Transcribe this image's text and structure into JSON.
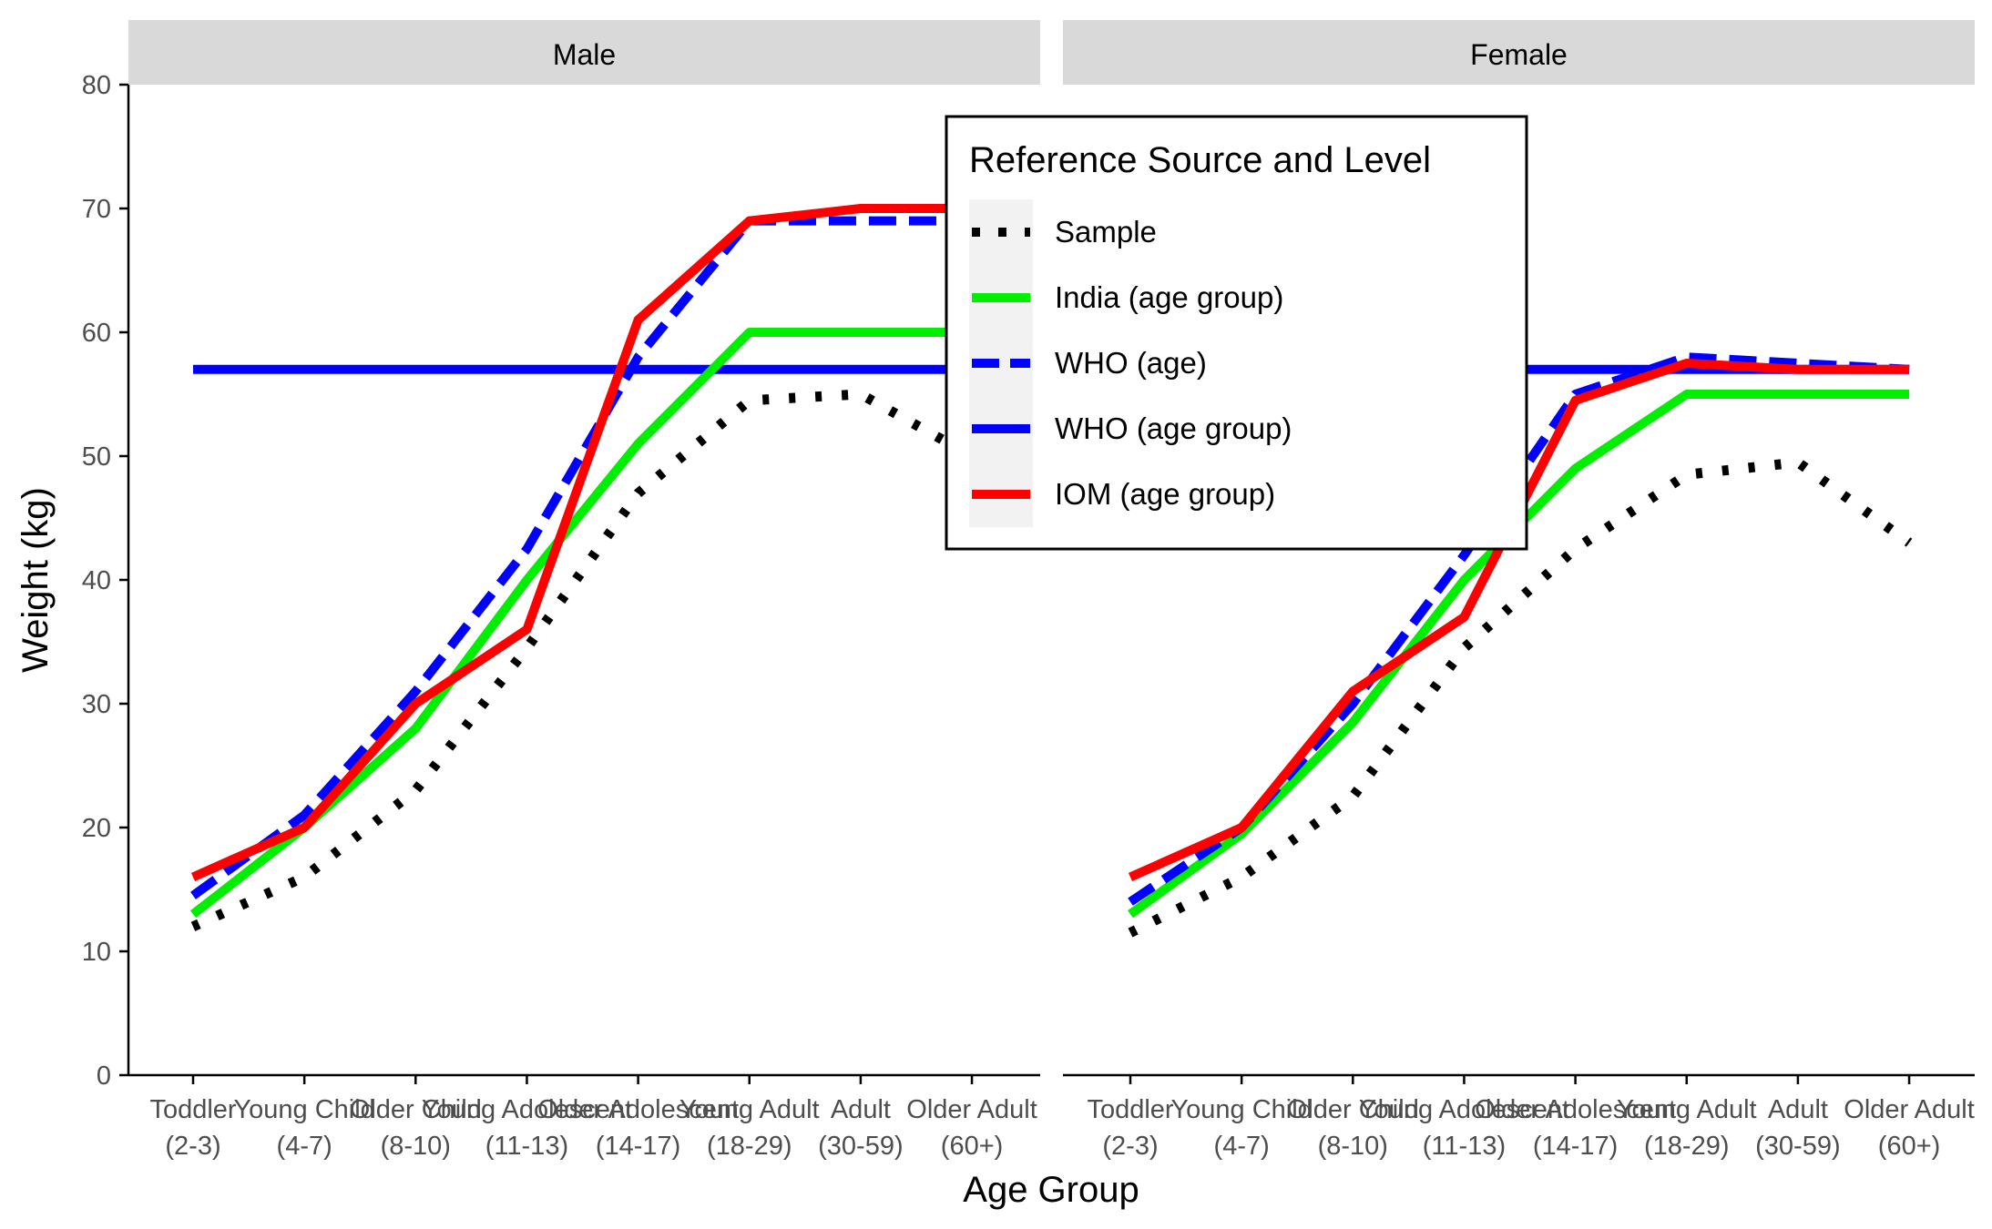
{
  "chart_data": {
    "type": "line",
    "xlabel": "Age Group",
    "ylabel": "Weight (kg)",
    "ylim": [
      0,
      80
    ],
    "yticks": [
      0,
      10,
      20,
      30,
      40,
      50,
      60,
      70,
      80
    ],
    "categories": [
      {
        "line1": "Toddler",
        "line2": "(2-3)"
      },
      {
        "line1": "Young Child",
        "line2": "(4-7)"
      },
      {
        "line1": "Older Child",
        "line2": "(8-10)"
      },
      {
        "line1": "Young Adolescent",
        "line2": "(11-13)"
      },
      {
        "line1": "Older Adolescent",
        "line2": "(14-17)"
      },
      {
        "line1": "Young Adult",
        "line2": "(18-29)"
      },
      {
        "line1": "Adult",
        "line2": "(30-59)"
      },
      {
        "line1": "Older Adult",
        "line2": "(60+)"
      }
    ],
    "legend": {
      "title": "Reference Source and Level",
      "placement": "top-center",
      "entries": [
        {
          "name": "Sample",
          "color": "#000000",
          "style": "dotted"
        },
        {
          "name": "India (age group)",
          "color": "#00ee00",
          "style": "solid"
        },
        {
          "name": "WHO (age)",
          "color": "#0000ff",
          "style": "dashed"
        },
        {
          "name": "WHO (age group)",
          "color": "#0000ff",
          "style": "solid"
        },
        {
          "name": "IOM (age group)",
          "color": "#ff0000",
          "style": "solid"
        }
      ]
    },
    "panels": [
      {
        "label": "Male",
        "series": [
          {
            "name": "Sample",
            "values": [
              12,
              16,
              23,
              34.5,
              47,
              54.5,
              55,
              50
            ]
          },
          {
            "name": "India (age group)",
            "values": [
              13,
              20,
              28,
              40,
              51,
              60,
              60,
              60
            ]
          },
          {
            "name": "WHO (age)",
            "values": [
              14.5,
              21,
              31,
              42.5,
              58,
              69,
              69,
              69
            ]
          },
          {
            "name": "WHO (age group)",
            "values": [
              57,
              57,
              57,
              57,
              57,
              57,
              57,
              57
            ]
          },
          {
            "name": "IOM (age group)",
            "values": [
              16,
              20,
              30,
              36,
              61,
              69,
              70,
              70
            ]
          }
        ]
      },
      {
        "label": "Female",
        "series": [
          {
            "name": "Sample",
            "values": [
              11.5,
              16,
              22.5,
              34.5,
              42.5,
              48.5,
              49.5,
              43
            ]
          },
          {
            "name": "India (age group)",
            "values": [
              13,
              19.5,
              28.5,
              40,
              49,
              55,
              55,
              55
            ]
          },
          {
            "name": "WHO (age)",
            "values": [
              14,
              20,
              30,
              42,
              55,
              58,
              57.5,
              57
            ]
          },
          {
            "name": "WHO (age group)",
            "values": [
              57,
              57,
              57,
              57,
              57,
              57,
              57,
              57
            ]
          },
          {
            "name": "IOM (age group)",
            "values": [
              16,
              20,
              31,
              37,
              54.5,
              57.5,
              57,
              57
            ]
          }
        ]
      }
    ]
  }
}
